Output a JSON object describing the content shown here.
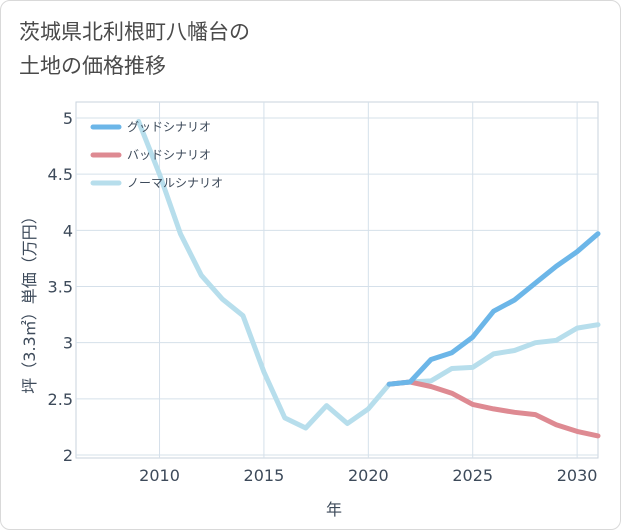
{
  "title_line1": "茨城県北利根町八幡台の",
  "title_line2": "土地の価格推移",
  "chart_data": {
    "type": "line",
    "title": "茨城県北利根町八幡台の土地の価格推移",
    "xlabel": "年",
    "ylabel": "坪（3.3㎡）単価（万円）",
    "xlim": [
      2006,
      2031
    ],
    "ylim": [
      2,
      5.1
    ],
    "xticks": [
      2010,
      2015,
      2020,
      2025,
      2030
    ],
    "yticks": [
      2,
      2.5,
      3,
      3.5,
      4,
      4.5,
      5
    ],
    "ytick_labels": [
      "2",
      "2.5",
      "3",
      "3.5",
      "4",
      "4.5",
      "5"
    ],
    "grid": true,
    "legend_position": "top-left",
    "series": [
      {
        "name": "グッドシナリオ",
        "color": "#6cb6e8",
        "x": [
          2021,
          2022,
          2023,
          2024,
          2025,
          2026,
          2027,
          2028,
          2029,
          2030,
          2031
        ],
        "values": [
          2.63,
          2.65,
          2.85,
          2.91,
          3.05,
          3.28,
          3.38,
          3.53,
          3.68,
          3.81,
          3.97
        ]
      },
      {
        "name": "バッドシナリオ",
        "color": "#de8a92",
        "x": [
          2021,
          2022,
          2023,
          2024,
          2025,
          2026,
          2027,
          2028,
          2029,
          2030,
          2031
        ],
        "values": [
          2.63,
          2.65,
          2.61,
          2.55,
          2.45,
          2.41,
          2.38,
          2.36,
          2.27,
          2.21,
          2.17
        ]
      },
      {
        "name": "ノーマルシナリオ",
        "color": "#b7deec",
        "x": [
          2009,
          2010,
          2011,
          2012,
          2013,
          2014,
          2015,
          2016,
          2017,
          2018,
          2019,
          2020,
          2021,
          2022,
          2023,
          2024,
          2025,
          2026,
          2027,
          2028,
          2029,
          2030,
          2031
        ],
        "values": [
          4.97,
          4.5,
          3.97,
          3.6,
          3.39,
          3.24,
          2.74,
          2.33,
          2.24,
          2.44,
          2.28,
          2.41,
          2.63,
          2.65,
          2.66,
          2.77,
          2.78,
          2.9,
          2.93,
          3.0,
          3.02,
          3.13,
          3.16
        ]
      }
    ]
  }
}
